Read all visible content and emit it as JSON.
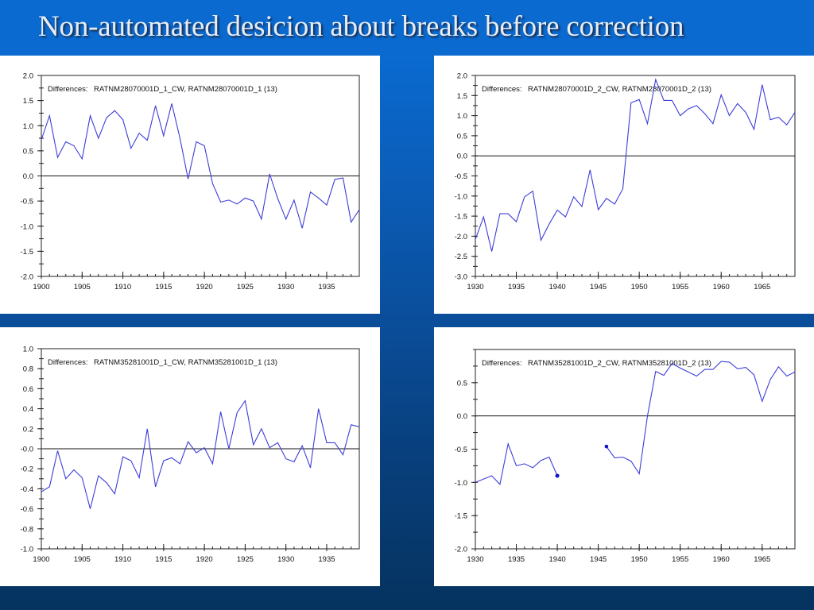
{
  "slide": {
    "title": "Non-automated desicion about breaks before correction",
    "colors": {
      "background_top": "#0a6ad0",
      "background_bottom": "#06335f",
      "line": "#3d3dd8",
      "marker": "#1010c8"
    }
  },
  "chart_data": [
    {
      "type": "line",
      "title": "",
      "legend_prefix": "Differences:",
      "legend_series": "RATNM28070001D_1_CW, RATNM28070001D_1 (13)",
      "legend_placement": "top-left",
      "xlabel": "",
      "ylabel": "",
      "xlim": [
        1900,
        1939
      ],
      "ylim": [
        -2.0,
        2.0
      ],
      "xticks": [
        "1900",
        "1905",
        "1910",
        "1915",
        "1920",
        "1925",
        "1930",
        "1935"
      ],
      "xtick_values": [
        1900,
        1905,
        1910,
        1915,
        1920,
        1925,
        1930,
        1935
      ],
      "yticks": [
        "2.0",
        "1.5",
        "1.0",
        "0.5",
        "0.0",
        "-0.5",
        "-1.0",
        "-1.5",
        "-2.0"
      ],
      "ytick_values": [
        2.0,
        1.5,
        1.0,
        0.5,
        0.0,
        -0.5,
        -1.0,
        -1.5,
        -2.0
      ],
      "zero_line": true,
      "x": [
        1900,
        1901,
        1902,
        1903,
        1904,
        1905,
        1906,
        1907,
        1908,
        1909,
        1910,
        1911,
        1912,
        1913,
        1914,
        1915,
        1916,
        1917,
        1918,
        1919,
        1920,
        1921,
        1922,
        1923,
        1924,
        1925,
        1926,
        1927,
        1928,
        1929,
        1930,
        1931,
        1932,
        1933,
        1934,
        1935,
        1936,
        1937,
        1938,
        1939
      ],
      "y": [
        0.72,
        1.2,
        0.37,
        0.68,
        0.6,
        0.34,
        1.2,
        0.75,
        1.16,
        1.3,
        1.12,
        0.55,
        0.85,
        0.71,
        1.4,
        0.8,
        1.44,
        0.75,
        -0.06,
        0.68,
        0.6,
        -0.15,
        -0.52,
        -0.48,
        -0.56,
        -0.44,
        -0.5,
        -0.86,
        0.04,
        -0.45,
        -0.86,
        -0.48,
        -1.04,
        -0.32,
        -0.44,
        -0.58,
        -0.07,
        -0.04,
        -0.92,
        -0.67
      ]
    },
    {
      "type": "line",
      "title": "",
      "legend_prefix": "Differences:",
      "legend_series": "RATNM28070001D_2_CW, RATNM28070001D_2 (13)",
      "legend_placement": "top-left",
      "xlabel": "",
      "ylabel": "",
      "xlim": [
        1930,
        1969
      ],
      "ylim": [
        -3.0,
        2.0
      ],
      "xticks": [
        "1930",
        "1935",
        "1940",
        "1945",
        "1950",
        "1955",
        "1960",
        "1965"
      ],
      "xtick_values": [
        1930,
        1935,
        1940,
        1945,
        1950,
        1955,
        1960,
        1965
      ],
      "yticks": [
        "2.0",
        "1.5",
        "1.0",
        "0.5",
        "0.0",
        "-0.5",
        "-1.0",
        "-1.5",
        "-2.0",
        "-2.5",
        "-3.0"
      ],
      "ytick_values": [
        2.0,
        1.5,
        1.0,
        0.5,
        0.0,
        -0.5,
        -1.0,
        -1.5,
        -2.0,
        -2.5,
        -3.0
      ],
      "zero_line": true,
      "x": [
        1930,
        1931,
        1932,
        1933,
        1934,
        1935,
        1936,
        1937,
        1938,
        1939,
        1940,
        1941,
        1942,
        1943,
        1944,
        1945,
        1946,
        1947,
        1948,
        1949,
        1950,
        1951,
        1952,
        1953,
        1954,
        1955,
        1956,
        1957,
        1958,
        1959,
        1960,
        1961,
        1962,
        1963,
        1964,
        1965,
        1966,
        1967,
        1968,
        1969
      ],
      "y": [
        -2.08,
        -1.52,
        -2.38,
        -1.44,
        -1.44,
        -1.64,
        -1.02,
        -0.88,
        -2.1,
        -1.7,
        -1.35,
        -1.52,
        -1.02,
        -1.26,
        -0.35,
        -1.34,
        -1.06,
        -1.2,
        -0.82,
        1.32,
        1.4,
        0.8,
        1.9,
        1.38,
        1.38,
        1.0,
        1.17,
        1.25,
        1.05,
        0.8,
        1.52,
        1.0,
        1.3,
        1.08,
        0.66,
        1.77,
        0.9,
        0.96,
        0.77,
        1.08
      ]
    },
    {
      "type": "line",
      "title": "",
      "legend_prefix": "Differences:",
      "legend_series": "RATNM35281001D_1_CW, RATNM35281001D_1 (13)",
      "legend_placement": "top-left",
      "xlabel": "",
      "ylabel": "",
      "xlim": [
        1900,
        1939
      ],
      "ylim": [
        -1.0,
        1.0
      ],
      "xticks": [
        "1900",
        "1905",
        "1910",
        "1915",
        "1920",
        "1925",
        "1930",
        "1935"
      ],
      "xtick_values": [
        1900,
        1905,
        1910,
        1915,
        1920,
        1925,
        1930,
        1935
      ],
      "yticks": [
        "1.0",
        "0.8",
        "0.6",
        "0.4",
        "0.2",
        "-0.0",
        "-0.2",
        "-0.4",
        "-0.6",
        "-0.8",
        "-1.0"
      ],
      "ytick_values": [
        1.0,
        0.8,
        0.6,
        0.4,
        0.2,
        0.0,
        -0.2,
        -0.4,
        -0.6,
        -0.8,
        -1.0
      ],
      "zero_line": true,
      "x": [
        1900,
        1901,
        1902,
        1903,
        1904,
        1905,
        1906,
        1907,
        1908,
        1909,
        1910,
        1911,
        1912,
        1913,
        1914,
        1915,
        1916,
        1917,
        1918,
        1919,
        1920,
        1921,
        1922,
        1923,
        1924,
        1925,
        1926,
        1927,
        1928,
        1929,
        1930,
        1931,
        1932,
        1933,
        1934,
        1935,
        1936,
        1937,
        1938,
        1939
      ],
      "y": [
        -0.43,
        -0.38,
        -0.02,
        -0.3,
        -0.21,
        -0.29,
        -0.6,
        -0.27,
        -0.34,
        -0.45,
        -0.08,
        -0.12,
        -0.29,
        0.2,
        -0.38,
        -0.12,
        -0.09,
        -0.15,
        0.07,
        -0.04,
        0.01,
        -0.15,
        0.37,
        0.0,
        0.36,
        0.48,
        0.04,
        0.2,
        0.01,
        0.06,
        -0.1,
        -0.13,
        0.03,
        -0.19,
        0.4,
        0.06,
        0.06,
        -0.06,
        0.24,
        0.22
      ]
    },
    {
      "type": "line",
      "title": "",
      "legend_prefix": "Differences:",
      "legend_series": "RATNM35281001D_2_CW, RATNM35281001D_2 (13)",
      "legend_placement": "top-left",
      "xlabel": "",
      "ylabel": "",
      "xlim": [
        1930,
        1969
      ],
      "ylim": [
        -2.0,
        1.0
      ],
      "xticks": [
        "1930",
        "1935",
        "1940",
        "1945",
        "1950",
        "1955",
        "1960",
        "1965"
      ],
      "xtick_values": [
        1930,
        1935,
        1940,
        1945,
        1950,
        1955,
        1960,
        1965
      ],
      "yticks": [
        "0.5",
        "0.0",
        "-0.5",
        "-1.0",
        "-1.5",
        "-2.0"
      ],
      "ytick_values": [
        0.5,
        0.0,
        -0.5,
        -1.0,
        -1.5,
        -2.0
      ],
      "zero_line": true,
      "segments": [
        {
          "x": [
            1930,
            1931,
            1932,
            1933,
            1934,
            1935,
            1936,
            1937,
            1938,
            1939,
            1940
          ],
          "y": [
            -1.0,
            -0.95,
            -0.9,
            -1.03,
            -0.42,
            -0.75,
            -0.72,
            -0.78,
            -0.67,
            -0.62,
            -0.9
          ],
          "end_marker": true
        },
        {
          "x": [
            1946,
            1947,
            1948,
            1949,
            1950,
            1951,
            1952,
            1953,
            1954,
            1955,
            1956,
            1957,
            1958,
            1959,
            1960,
            1961,
            1962,
            1963,
            1964,
            1965,
            1966,
            1967,
            1968,
            1969
          ],
          "y": [
            -0.46,
            -0.63,
            -0.62,
            -0.68,
            -0.87,
            0.0,
            0.67,
            0.61,
            0.79,
            0.72,
            0.66,
            0.6,
            0.7,
            0.7,
            0.82,
            0.81,
            0.71,
            0.73,
            0.62,
            0.22,
            0.55,
            0.74,
            0.6,
            0.66
          ],
          "start_marker": true
        }
      ]
    }
  ]
}
